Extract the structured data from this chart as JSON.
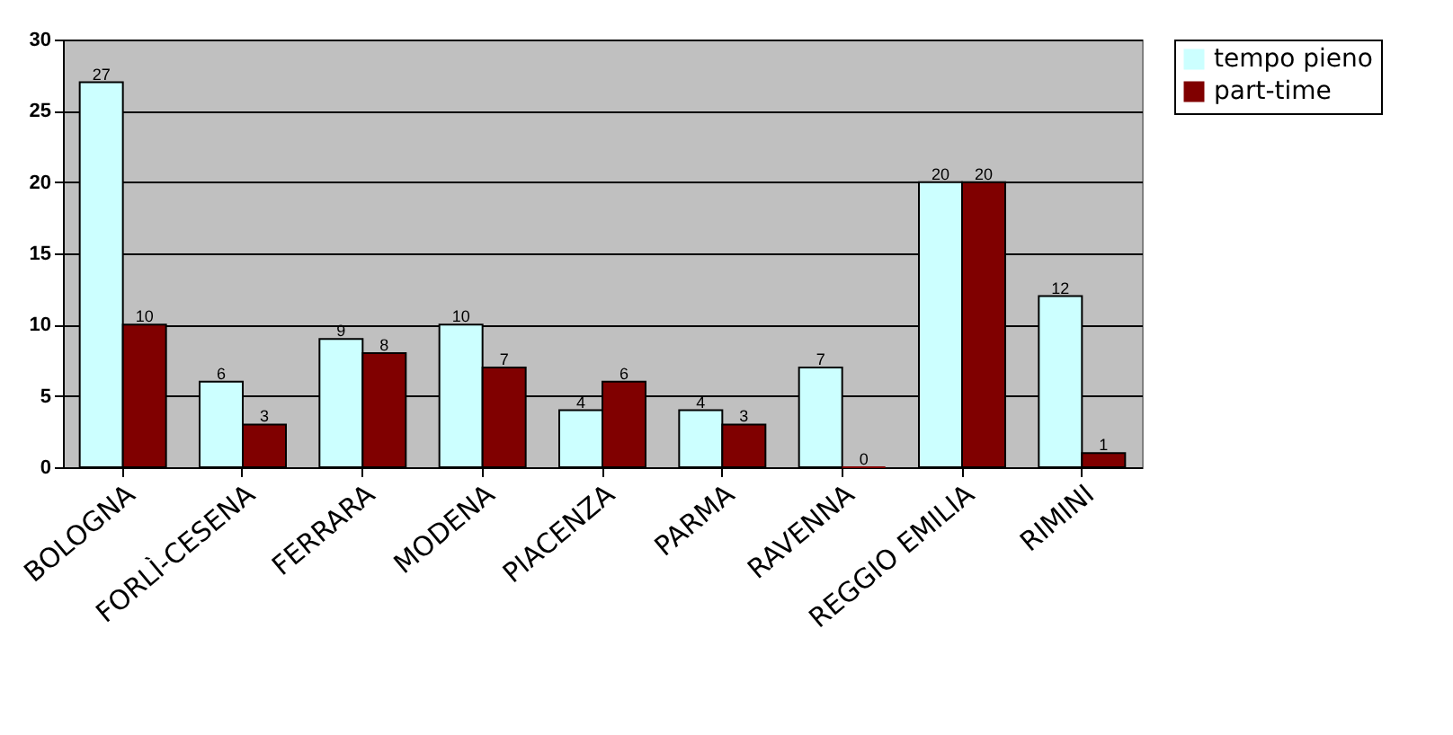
{
  "chart_data": {
    "type": "bar",
    "categories": [
      "BOLOGNA",
      "FORLÌ-CESENA",
      "FERRARA",
      "MODENA",
      "PIACENZA",
      "PARMA",
      "RAVENNA",
      "REGGIO EMILIA",
      "RIMINI"
    ],
    "series": [
      {
        "name": "tempo pieno",
        "color": "#ccffff",
        "values": [
          27,
          6,
          9,
          10,
          4,
          4,
          7,
          20,
          12
        ]
      },
      {
        "name": "part-time",
        "color": "#800000",
        "values": [
          10,
          3,
          8,
          7,
          6,
          3,
          0,
          20,
          1
        ]
      }
    ],
    "ylim": [
      0,
      30
    ],
    "yticks": [
      0,
      5,
      10,
      15,
      20,
      25,
      30
    ],
    "grid": "y",
    "legend": "right",
    "data_labels": true
  }
}
